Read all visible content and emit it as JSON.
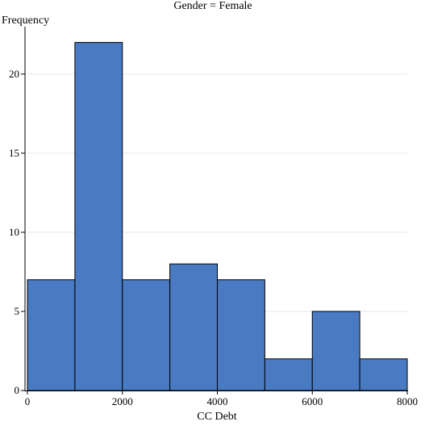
{
  "chart_data": {
    "type": "bar",
    "title": "Gender = Female",
    "xlabel": "CC Debt",
    "ylabel": "Frequency",
    "bins": [
      {
        "x0": 0,
        "x1": 1000,
        "value": 7
      },
      {
        "x0": 1000,
        "x1": 2000,
        "value": 22
      },
      {
        "x0": 2000,
        "x1": 3000,
        "value": 7
      },
      {
        "x0": 3000,
        "x1": 4000,
        "value": 8
      },
      {
        "x0": 4000,
        "x1": 5000,
        "value": 7
      },
      {
        "x0": 5000,
        "x1": 6000,
        "value": 2
      },
      {
        "x0": 6000,
        "x1": 7000,
        "value": 5
      },
      {
        "x0": 7000,
        "x1": 8000,
        "value": 2
      }
    ],
    "xlim": [
      0,
      8000
    ],
    "ylim": [
      0,
      23
    ],
    "xticks": [
      0,
      2000,
      4000,
      6000,
      8000
    ],
    "yticks": [
      0,
      5,
      10,
      15,
      20
    ],
    "grid": true,
    "bar_color": "#4a7ac2",
    "bar_edge_color": "#000000",
    "grid_color": "#e6e6e6"
  }
}
